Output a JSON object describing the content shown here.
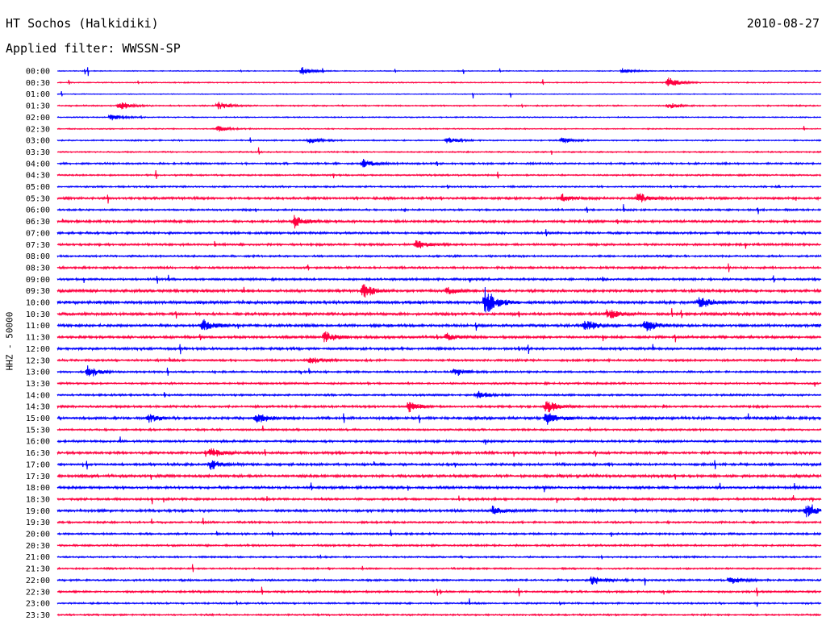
{
  "header": {
    "station": "HT Sochos (Halkidiki)",
    "date": "2010-08-27",
    "filter": "Applied filter: WWSSN-SP"
  },
  "chart_data": {
    "type": "line",
    "title": "HT Sochos (Halkidiki)",
    "subtitle": "Applied filter: WWSSN-SP",
    "ylabel": "HHZ - 50000",
    "xlabel": "",
    "grid": false,
    "colors": [
      "#0000ff",
      "#ff0040"
    ],
    "trace_color_pattern": "alternating blue / red per row",
    "row_labels": [
      "00:00",
      "00:30",
      "01:00",
      "01:30",
      "02:00",
      "02:30",
      "03:00",
      "03:30",
      "04:00",
      "04:30",
      "05:00",
      "05:30",
      "06:00",
      "06:30",
      "07:00",
      "07:30",
      "08:00",
      "08:30",
      "09:00",
      "09:30",
      "10:00",
      "10:30",
      "11:00",
      "11:30",
      "12:00",
      "12:30",
      "13:00",
      "13:30",
      "14:00",
      "14:30",
      "15:00",
      "15:30",
      "16:00",
      "16:30",
      "17:00",
      "17:30",
      "18:00",
      "18:30",
      "19:00",
      "19:30",
      "20:00",
      "20:30",
      "21:00",
      "21:30",
      "22:00",
      "22:30",
      "23:00",
      "23:30"
    ],
    "row_noise_level": [
      0.3,
      0.4,
      0.3,
      0.5,
      0.4,
      0.4,
      0.5,
      0.5,
      0.7,
      0.6,
      0.6,
      0.9,
      0.7,
      0.9,
      0.8,
      0.8,
      0.7,
      0.8,
      0.8,
      1.0,
      1.1,
      1.0,
      1.0,
      0.9,
      0.9,
      0.8,
      0.7,
      0.7,
      0.7,
      0.8,
      1.0,
      0.7,
      0.8,
      0.9,
      0.9,
      1.0,
      0.9,
      0.8,
      0.9,
      0.7,
      0.7,
      0.7,
      0.6,
      0.6,
      0.7,
      0.7,
      0.6,
      0.6
    ],
    "bursts": [
      {
        "row": 0,
        "t": 0.32,
        "amp": 4
      },
      {
        "row": 0,
        "t": 0.74,
        "amp": 3
      },
      {
        "row": 1,
        "t": 0.8,
        "amp": 5
      },
      {
        "row": 3,
        "t": 0.08,
        "amp": 4
      },
      {
        "row": 3,
        "t": 0.21,
        "amp": 4
      },
      {
        "row": 3,
        "t": 0.8,
        "amp": 3
      },
      {
        "row": 4,
        "t": 0.07,
        "amp": 3
      },
      {
        "row": 5,
        "t": 0.21,
        "amp": 3
      },
      {
        "row": 6,
        "t": 0.33,
        "amp": 3
      },
      {
        "row": 6,
        "t": 0.51,
        "amp": 3
      },
      {
        "row": 6,
        "t": 0.66,
        "amp": 3
      },
      {
        "row": 8,
        "t": 0.4,
        "amp": 4
      },
      {
        "row": 11,
        "t": 0.66,
        "amp": 4
      },
      {
        "row": 11,
        "t": 0.76,
        "amp": 5
      },
      {
        "row": 13,
        "t": 0.31,
        "amp": 6
      },
      {
        "row": 15,
        "t": 0.47,
        "amp": 4
      },
      {
        "row": 19,
        "t": 0.4,
        "amp": 7
      },
      {
        "row": 19,
        "t": 0.51,
        "amp": 4
      },
      {
        "row": 20,
        "t": 0.56,
        "amp": 14
      },
      {
        "row": 20,
        "t": 0.84,
        "amp": 6
      },
      {
        "row": 21,
        "t": 0.72,
        "amp": 5
      },
      {
        "row": 22,
        "t": 0.19,
        "amp": 6
      },
      {
        "row": 22,
        "t": 0.69,
        "amp": 6
      },
      {
        "row": 22,
        "t": 0.77,
        "amp": 6
      },
      {
        "row": 23,
        "t": 0.35,
        "amp": 6
      },
      {
        "row": 23,
        "t": 0.51,
        "amp": 4
      },
      {
        "row": 25,
        "t": 0.33,
        "amp": 4
      },
      {
        "row": 26,
        "t": 0.04,
        "amp": 6
      },
      {
        "row": 26,
        "t": 0.52,
        "amp": 4
      },
      {
        "row": 28,
        "t": 0.55,
        "amp": 4
      },
      {
        "row": 29,
        "t": 0.46,
        "amp": 5
      },
      {
        "row": 29,
        "t": 0.64,
        "amp": 7
      },
      {
        "row": 30,
        "t": 0.12,
        "amp": 4
      },
      {
        "row": 30,
        "t": 0.26,
        "amp": 6
      },
      {
        "row": 30,
        "t": 0.64,
        "amp": 6
      },
      {
        "row": 33,
        "t": 0.2,
        "amp": 5
      },
      {
        "row": 34,
        "t": 0.2,
        "amp": 5
      },
      {
        "row": 38,
        "t": 0.57,
        "amp": 4
      },
      {
        "row": 38,
        "t": 0.98,
        "amp": 6
      },
      {
        "row": 44,
        "t": 0.7,
        "amp": 5
      },
      {
        "row": 44,
        "t": 0.88,
        "amp": 4
      }
    ]
  }
}
